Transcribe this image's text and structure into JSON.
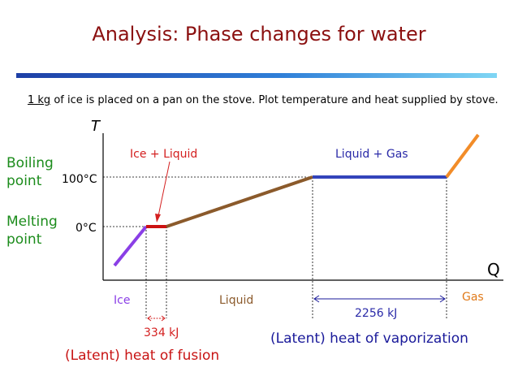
{
  "title": "Analysis: Phase changes for water",
  "problem": {
    "underlined": "1 kg",
    "text": " of ice is placed on a pan on the stove. Plot temperature and heat supplied by stove."
  },
  "axes": {
    "y_label": "T",
    "x_label": "Q"
  },
  "temperatures": {
    "boiling": "100°C",
    "melting": "0°C"
  },
  "point_labels": {
    "boiling": "Boiling point",
    "melting": "Melting point"
  },
  "region_labels": {
    "ice_liquid": "Ice + Liquid",
    "liquid_gas": "Liquid + Gas",
    "ice": "Ice",
    "liquid": "Liquid",
    "gas": "Gas"
  },
  "heat_values": {
    "fusion": "334 kJ",
    "vaporization": "2256 kJ"
  },
  "latent_labels": {
    "fusion": "(Latent) heat of fusion",
    "vaporization": "(Latent) heat of vaporization"
  },
  "colors": {
    "ice": "#8a3fe6",
    "ice_liquid": "#cc1111",
    "liquid": "#8b5a2b",
    "liquid_gas": "#3344bb",
    "gas": "#f28c28"
  }
}
